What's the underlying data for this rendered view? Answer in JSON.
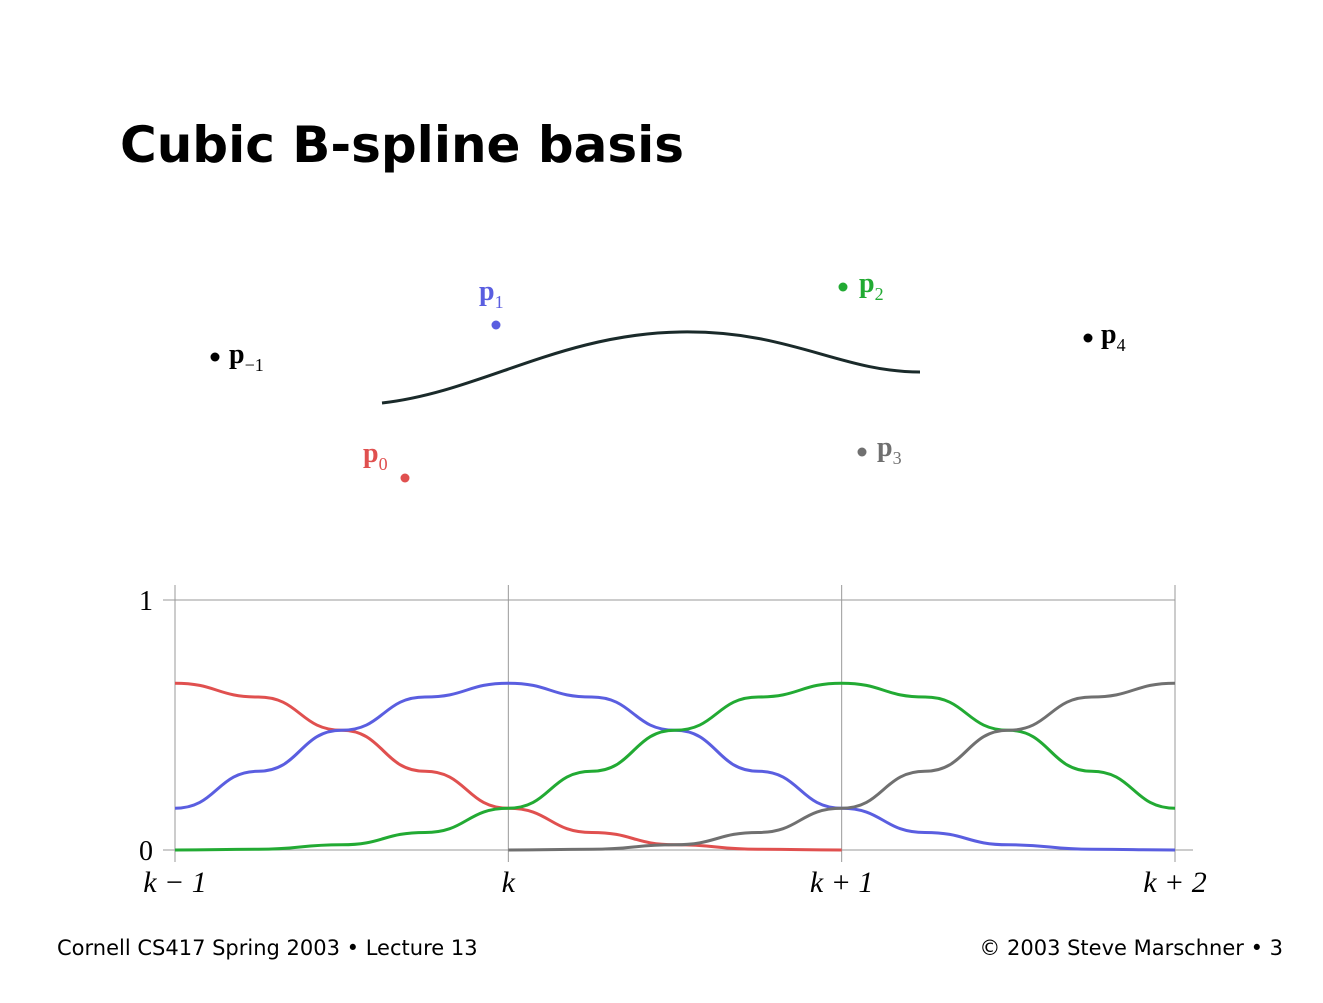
{
  "header": {
    "title": "Cubic B-spline basis"
  },
  "diagram": {
    "points": [
      {
        "label": "p",
        "sub": "−1"
      },
      {
        "label": "p",
        "sub": "0"
      },
      {
        "label": "p",
        "sub": "1"
      },
      {
        "label": "p",
        "sub": "2"
      },
      {
        "label": "p",
        "sub": "3"
      },
      {
        "label": "p",
        "sub": "4"
      }
    ]
  },
  "chart_data": {
    "type": "line",
    "x": [
      0,
      0.25,
      0.5,
      0.75,
      1,
      1.25,
      1.5,
      1.75,
      2,
      2.25,
      2.5,
      2.75,
      3
    ],
    "xlim": [
      0,
      3
    ],
    "xticks": [
      {
        "value": 0,
        "label": "k − 1"
      },
      {
        "value": 1,
        "label": "k"
      },
      {
        "value": 2,
        "label": "k + 1"
      },
      {
        "value": 3,
        "label": "k + 2"
      }
    ],
    "ylim": [
      0,
      1
    ],
    "yticks": [
      0,
      1
    ],
    "grid": true,
    "series": [
      {
        "color": "#e0504f",
        "values": [
          0.667,
          0.612,
          0.479,
          0.315,
          0.167,
          0.07,
          0.021,
          0.003,
          0,
          null,
          null,
          null,
          null
        ]
      },
      {
        "color": "#5a5ee0",
        "values": [
          0.167,
          0.315,
          0.479,
          0.612,
          0.667,
          0.612,
          0.479,
          0.315,
          0.167,
          0.07,
          0.021,
          0.003,
          0
        ]
      },
      {
        "color": "#22aa33",
        "values": [
          0,
          0.003,
          0.021,
          0.07,
          0.167,
          0.315,
          0.479,
          0.612,
          0.667,
          0.612,
          0.479,
          0.315,
          0.167
        ]
      },
      {
        "color": "#707070",
        "values": [
          null,
          null,
          null,
          null,
          0,
          0.003,
          0.021,
          0.07,
          0.167,
          0.315,
          0.479,
          0.612,
          0.667
        ]
      }
    ]
  },
  "footer": {
    "left": "Cornell CS417 Spring 2003 • Lecture 13",
    "right": "© 2003 Steve Marschner • 3"
  }
}
